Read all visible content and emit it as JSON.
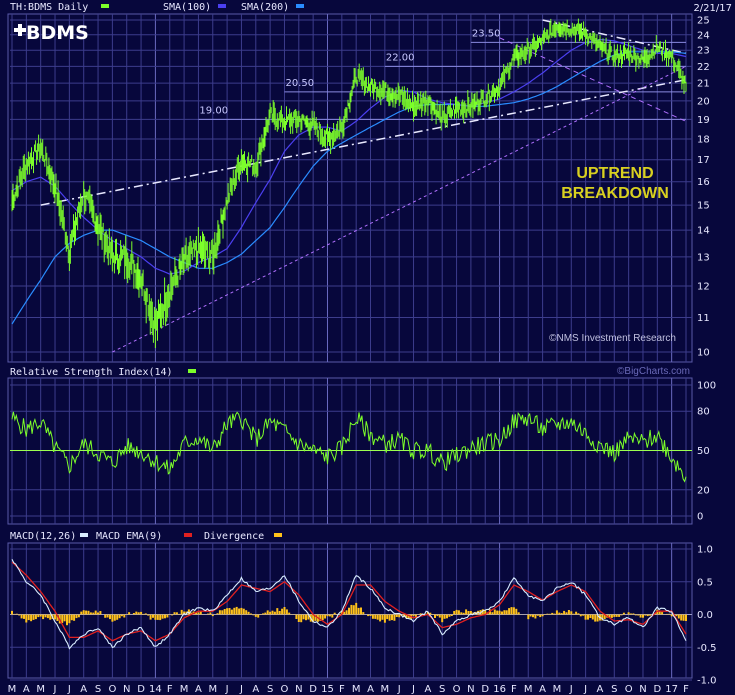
{
  "header": {
    "symbol_label": "TH:BDMS Daily",
    "sma100_label": "SMA(100)",
    "sma200_label": "SMA(200)",
    "date": "2/21/17",
    "logo_text": "BDMS"
  },
  "annotations": {
    "uptrend_line1": "UPTREND",
    "uptrend_line2": "BREAKDOWN",
    "copyright": "©NMS Investment Research",
    "bigcharts": "©BigCharts.com"
  },
  "colors": {
    "background": "#07073c",
    "price": "#7cff2a",
    "sma100": "#4b3ff0",
    "sma200": "#2a8cff",
    "grid": "#3c3c8c",
    "macd": "#d8ecff",
    "macd_ema": "#e02020",
    "divergence": "#ffc21a",
    "annotation": "#d8d020"
  },
  "time_axis": [
    "M",
    "A",
    "M",
    "J",
    "J",
    "A",
    "S",
    "O",
    "N",
    "D",
    "14",
    "F",
    "M",
    "A",
    "M",
    "J",
    "J",
    "A",
    "S",
    "O",
    "N",
    "D",
    "15",
    "F",
    "M",
    "A",
    "M",
    "J",
    "J",
    "A",
    "S",
    "O",
    "N",
    "D",
    "16",
    "F",
    "M",
    "A",
    "M",
    "J",
    "J",
    "A",
    "S",
    "O",
    "N",
    "D",
    "17",
    "F"
  ],
  "chart_data": [
    {
      "type": "line",
      "title": "TH:BDMS Daily",
      "y_scale": "log",
      "ylim": [
        10,
        25
      ],
      "y_ticks": [
        25,
        24,
        23,
        22,
        21,
        20,
        19,
        18,
        17,
        16,
        15,
        14,
        13,
        12,
        11,
        10
      ],
      "grid": true,
      "series": [
        {
          "name": "TH:BDMS Daily",
          "x": [
            "M",
            "A",
            "M",
            "J",
            "J",
            "A",
            "S",
            "O",
            "N",
            "D",
            "14",
            "F",
            "M",
            "A",
            "M",
            "J",
            "J",
            "A",
            "S",
            "O",
            "N",
            "D",
            "15",
            "F",
            "M",
            "A",
            "M",
            "J",
            "J",
            "A",
            "S",
            "O",
            "N",
            "D",
            "16",
            "F",
            "M",
            "A",
            "M",
            "J",
            "J",
            "A",
            "S",
            "O",
            "N",
            "D",
            "17",
            "F"
          ],
          "values": [
            15.2,
            16.8,
            17.6,
            15.8,
            13.2,
            15.5,
            14.2,
            13.0,
            13.0,
            12.3,
            10.7,
            11.9,
            12.8,
            13.3,
            13.0,
            15.2,
            17.0,
            16.7,
            19.2,
            18.9,
            19.0,
            18.7,
            18.0,
            18.6,
            21.4,
            20.8,
            20.6,
            20.3,
            19.7,
            20.1,
            19.0,
            19.6,
            19.7,
            20.2,
            20.8,
            22.5,
            23.0,
            23.6,
            24.6,
            24.4,
            24.1,
            23.2,
            22.6,
            22.8,
            22.4,
            23.2,
            22.6,
            20.8
          ]
        },
        {
          "name": "SMA(100)",
          "values": [
            15.6,
            16.0,
            16.2,
            15.8,
            15.1,
            14.5,
            14.0,
            13.6,
            13.3,
            13.0,
            12.6,
            12.4,
            12.5,
            12.8,
            13.0,
            13.3,
            14.1,
            15.1,
            16.1,
            17.4,
            18.2,
            18.6,
            18.6,
            18.4,
            18.9,
            19.6,
            20.2,
            20.6,
            20.5,
            20.1,
            19.9,
            19.8,
            19.7,
            19.9,
            20.1,
            20.5,
            21.0,
            21.6,
            22.3,
            23.0,
            23.5,
            23.7,
            23.6,
            23.3,
            23.0,
            22.8,
            22.8,
            22.6
          ]
        },
        {
          "name": "SMA(200)",
          "values": [
            10.8,
            11.5,
            12.2,
            13.0,
            13.5,
            13.8,
            14.0,
            14.0,
            13.8,
            13.6,
            13.3,
            13.0,
            12.8,
            12.6,
            12.6,
            12.8,
            13.1,
            13.6,
            14.1,
            14.9,
            15.8,
            16.7,
            17.4,
            17.8,
            18.2,
            18.6,
            19.0,
            19.4,
            19.7,
            19.8,
            19.8,
            19.8,
            19.7,
            19.7,
            19.8,
            19.9,
            20.1,
            20.4,
            20.8,
            21.3,
            21.8,
            22.3,
            22.7,
            22.9,
            22.9,
            22.9,
            22.9,
            22.8
          ]
        }
      ],
      "levels": [
        {
          "label": "19.00",
          "value": 19.0
        },
        {
          "label": "20.50",
          "value": 20.5
        },
        {
          "label": "22.00",
          "value": 22.0
        },
        {
          "label": "23.50",
          "value": 23.5
        }
      ]
    },
    {
      "type": "line",
      "title": "Relative Strength Index(14)",
      "ylim": [
        0,
        100
      ],
      "y_ticks": [
        100,
        80,
        50,
        20,
        0
      ],
      "grid": true,
      "reference_line": 50,
      "series": [
        {
          "name": "Relative Strength Index(14)",
          "values": [
            75,
            66,
            72,
            52,
            38,
            55,
            48,
            40,
            53,
            49,
            42,
            35,
            55,
            60,
            50,
            70,
            75,
            58,
            72,
            65,
            55,
            50,
            45,
            52,
            75,
            62,
            55,
            58,
            50,
            50,
            40,
            46,
            52,
            55,
            58,
            72,
            75,
            66,
            70,
            72,
            63,
            54,
            48,
            59,
            56,
            62,
            45,
            30
          ]
        }
      ]
    },
    {
      "type": "line",
      "title": "MACD(12,26)",
      "ylim": [
        -1.0,
        1.0
      ],
      "y_ticks": [
        1.0,
        0.5,
        0.0,
        -0.5,
        -1.0
      ],
      "grid": true,
      "series": [
        {
          "name": "MACD(12,26)",
          "values": [
            0.85,
            0.5,
            0.3,
            -0.1,
            -0.5,
            -0.3,
            -0.2,
            -0.5,
            -0.3,
            -0.2,
            -0.5,
            -0.3,
            0.0,
            0.1,
            0.05,
            0.3,
            0.55,
            0.35,
            0.4,
            0.6,
            0.2,
            -0.1,
            -0.2,
            0.05,
            0.6,
            0.4,
            0.1,
            0.0,
            -0.1,
            0.05,
            -0.3,
            -0.1,
            0.0,
            0.05,
            0.2,
            0.55,
            0.3,
            0.2,
            0.4,
            0.5,
            0.3,
            -0.05,
            -0.15,
            -0.05,
            -0.2,
            0.1,
            0.05,
            -0.4
          ]
        },
        {
          "name": "MACD EMA(9)",
          "values": [
            0.8,
            0.6,
            0.35,
            0.05,
            -0.35,
            -0.35,
            -0.25,
            -0.4,
            -0.3,
            -0.25,
            -0.4,
            -0.3,
            -0.05,
            0.05,
            0.05,
            0.2,
            0.45,
            0.4,
            0.35,
            0.5,
            0.3,
            0.0,
            -0.15,
            0.0,
            0.45,
            0.45,
            0.2,
            0.05,
            -0.05,
            0.0,
            -0.2,
            -0.15,
            -0.05,
            0.0,
            0.15,
            0.45,
            0.35,
            0.22,
            0.35,
            0.45,
            0.35,
            0.05,
            -0.1,
            -0.08,
            -0.15,
            0.05,
            0.05,
            -0.3
          ]
        },
        {
          "name": "Divergence",
          "values": [
            0.05,
            -0.1,
            -0.05,
            -0.1,
            -0.15,
            0.05,
            0.05,
            -0.1,
            0.0,
            0.05,
            -0.1,
            0.0,
            0.05,
            0.05,
            0.0,
            0.1,
            0.1,
            -0.05,
            0.05,
            0.1,
            -0.1,
            -0.1,
            -0.05,
            0.05,
            0.15,
            -0.05,
            -0.1,
            -0.05,
            -0.05,
            0.05,
            -0.1,
            0.05,
            0.05,
            0.05,
            0.05,
            0.1,
            -0.05,
            -0.02,
            0.05,
            0.05,
            -0.05,
            -0.1,
            -0.05,
            0.03,
            -0.05,
            0.05,
            0.0,
            -0.1
          ]
        }
      ]
    }
  ]
}
